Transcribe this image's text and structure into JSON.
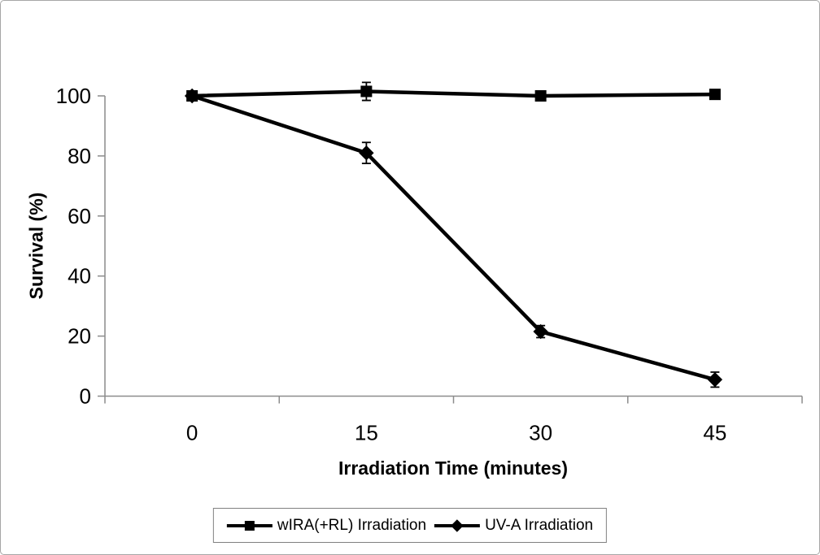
{
  "colors": {
    "series": "#000000",
    "axis": "#8c8c8c",
    "legend_border": "#808080"
  },
  "chart_data": {
    "type": "line",
    "title": "",
    "xlabel": "Irradiation Time (minutes)",
    "ylabel": "Survival (%)",
    "categories": [
      0,
      15,
      30,
      45
    ],
    "x_tick_labels": [
      "0",
      "15",
      "30",
      "45"
    ],
    "y_ticks": [
      0,
      20,
      40,
      60,
      80,
      100
    ],
    "ylim": [
      0,
      100
    ],
    "grid": false,
    "legend_position": "bottom",
    "series": [
      {
        "name": "wIRA(+RL) Irradiation",
        "marker": "square",
        "values": [
          100,
          101.5,
          100,
          100.5
        ],
        "error": [
          0,
          3,
          0,
          0
        ]
      },
      {
        "name": "UV-A Irradiation",
        "marker": "diamond",
        "values": [
          100,
          81,
          21.5,
          5.5
        ],
        "error": [
          0,
          3.5,
          2,
          2.5
        ]
      }
    ]
  }
}
